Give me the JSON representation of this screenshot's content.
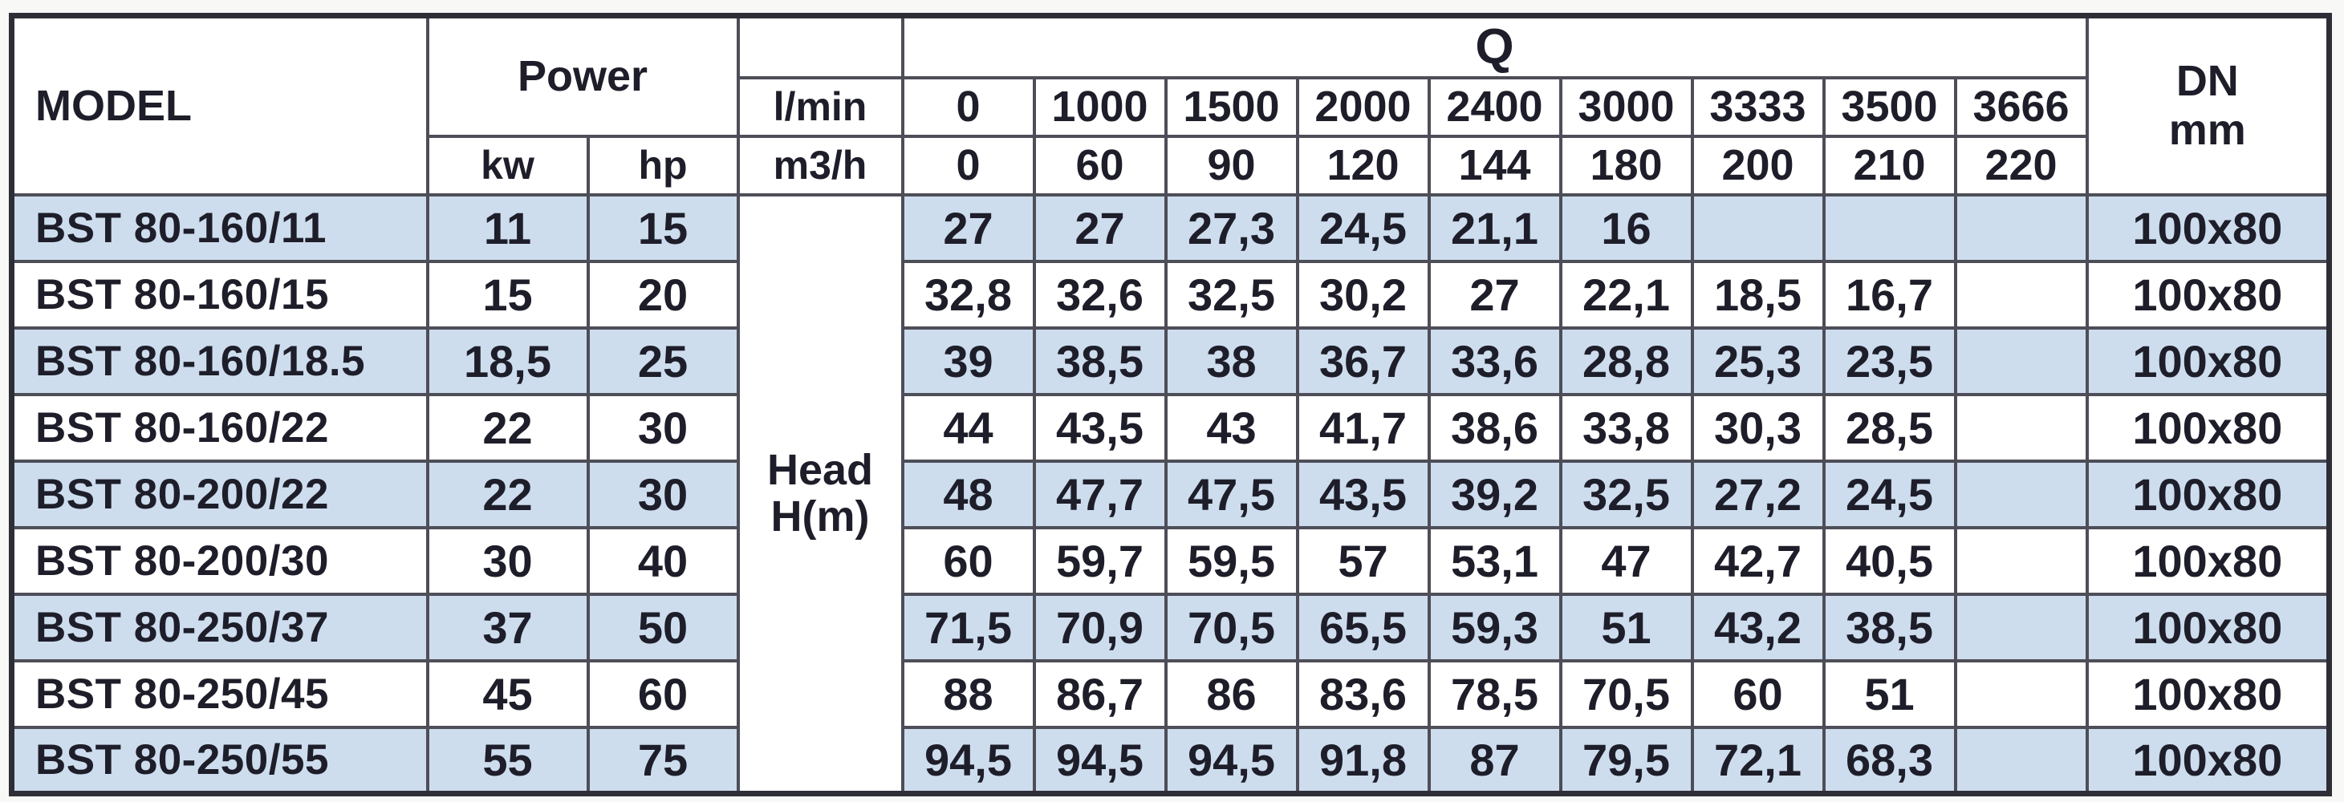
{
  "table": {
    "header": {
      "model_label": "MODEL",
      "power_label": "Power",
      "kw_label": "kw",
      "hp_label": "hp",
      "lmin_label": "l/min",
      "m3h_label": "m3/h",
      "q_label": "Q",
      "head_line1": "Head",
      "head_line2": "H(m)",
      "dn_line1": "DN",
      "dn_line2": "mm",
      "q_lmin_values": [
        "0",
        "1000",
        "1500",
        "2000",
        "2400",
        "3000",
        "3333",
        "3500",
        "3666"
      ],
      "q_m3h_values": [
        "0",
        "60",
        "90",
        "120",
        "144",
        "180",
        "200",
        "210",
        "220"
      ]
    },
    "colors": {
      "row_highlight": "#cdddee",
      "row_plain": "#ffffff",
      "border": "#4e4e58",
      "text": "#1e1e2a"
    },
    "rows": [
      {
        "model": "BST 80-160/11",
        "kw": "11",
        "hp": "15",
        "head": [
          "27",
          "27",
          "27,3",
          "24,5",
          "21,1",
          "16",
          "",
          "",
          ""
        ],
        "dn": "100x80"
      },
      {
        "model": "BST 80-160/15",
        "kw": "15",
        "hp": "20",
        "head": [
          "32,8",
          "32,6",
          "32,5",
          "30,2",
          "27",
          "22,1",
          "18,5",
          "16,7",
          ""
        ],
        "dn": "100x80"
      },
      {
        "model": "BST 80-160/18.5",
        "kw": "18,5",
        "hp": "25",
        "head": [
          "39",
          "38,5",
          "38",
          "36,7",
          "33,6",
          "28,8",
          "25,3",
          "23,5",
          ""
        ],
        "dn": "100x80"
      },
      {
        "model": "BST 80-160/22",
        "kw": "22",
        "hp": "30",
        "head": [
          "44",
          "43,5",
          "43",
          "41,7",
          "38,6",
          "33,8",
          "30,3",
          "28,5",
          ""
        ],
        "dn": "100x80"
      },
      {
        "model": "BST 80-200/22",
        "kw": "22",
        "hp": "30",
        "head": [
          "48",
          "47,7",
          "47,5",
          "43,5",
          "39,2",
          "32,5",
          "27,2",
          "24,5",
          ""
        ],
        "dn": "100x80"
      },
      {
        "model": "BST 80-200/30",
        "kw": "30",
        "hp": "40",
        "head": [
          "60",
          "59,7",
          "59,5",
          "57",
          "53,1",
          "47",
          "42,7",
          "40,5",
          ""
        ],
        "dn": "100x80"
      },
      {
        "model": "BST 80-250/37",
        "kw": "37",
        "hp": "50",
        "head": [
          "71,5",
          "70,9",
          "70,5",
          "65,5",
          "59,3",
          "51",
          "43,2",
          "38,5",
          ""
        ],
        "dn": "100x80"
      },
      {
        "model": "BST 80-250/45",
        "kw": "45",
        "hp": "60",
        "head": [
          "88",
          "86,7",
          "86",
          "83,6",
          "78,5",
          "70,5",
          "60",
          "51",
          ""
        ],
        "dn": "100x80"
      },
      {
        "model": "BST 80-250/55",
        "kw": "55",
        "hp": "75",
        "head": [
          "94,5",
          "94,5",
          "94,5",
          "91,8",
          "87",
          "79,5",
          "72,1",
          "68,3",
          ""
        ],
        "dn": "100x80"
      }
    ]
  },
  "chart_data": {
    "type": "table",
    "head_unit": "Head H(m)",
    "q_lmin": [
      0,
      1000,
      1500,
      2000,
      2400,
      3000,
      3333,
      3500,
      3666
    ],
    "q_m3h": [
      0,
      60,
      90,
      120,
      144,
      180,
      200,
      210,
      220
    ],
    "series": [
      {
        "model": "BST 80-160/11",
        "power_kw": 11,
        "power_hp": 15,
        "head_m": [
          27,
          27,
          27.3,
          24.5,
          21.1,
          16,
          null,
          null,
          null
        ],
        "dn_mm": "100x80"
      },
      {
        "model": "BST 80-160/15",
        "power_kw": 15,
        "power_hp": 20,
        "head_m": [
          32.8,
          32.6,
          32.5,
          30.2,
          27,
          22.1,
          18.5,
          16.7,
          null
        ],
        "dn_mm": "100x80"
      },
      {
        "model": "BST 80-160/18.5",
        "power_kw": 18.5,
        "power_hp": 25,
        "head_m": [
          39,
          38.5,
          38,
          36.7,
          33.6,
          28.8,
          25.3,
          23.5,
          null
        ],
        "dn_mm": "100x80"
      },
      {
        "model": "BST 80-160/22",
        "power_kw": 22,
        "power_hp": 30,
        "head_m": [
          44,
          43.5,
          43,
          41.7,
          38.6,
          33.8,
          30.3,
          28.5,
          null
        ],
        "dn_mm": "100x80"
      },
      {
        "model": "BST 80-200/22",
        "power_kw": 22,
        "power_hp": 30,
        "head_m": [
          48,
          47.7,
          47.5,
          43.5,
          39.2,
          32.5,
          27.2,
          24.5,
          null
        ],
        "dn_mm": "100x80"
      },
      {
        "model": "BST 80-200/30",
        "power_kw": 30,
        "power_hp": 40,
        "head_m": [
          60,
          59.7,
          59.5,
          57,
          53.1,
          47,
          42.7,
          40.5,
          null
        ],
        "dn_mm": "100x80"
      },
      {
        "model": "BST 80-250/37",
        "power_kw": 37,
        "power_hp": 50,
        "head_m": [
          71.5,
          70.9,
          70.5,
          65.5,
          59.3,
          51,
          43.2,
          38.5,
          null
        ],
        "dn_mm": "100x80"
      },
      {
        "model": "BST 80-250/45",
        "power_kw": 45,
        "power_hp": 60,
        "head_m": [
          88,
          86.7,
          86,
          83.6,
          78.5,
          70.5,
          60,
          51,
          null
        ],
        "dn_mm": "100x80"
      },
      {
        "model": "BST 80-250/55",
        "power_kw": 55,
        "power_hp": 75,
        "head_m": [
          94.5,
          94.5,
          94.5,
          91.8,
          87,
          79.5,
          72.1,
          68.3,
          null
        ],
        "dn_mm": "100x80"
      }
    ]
  }
}
